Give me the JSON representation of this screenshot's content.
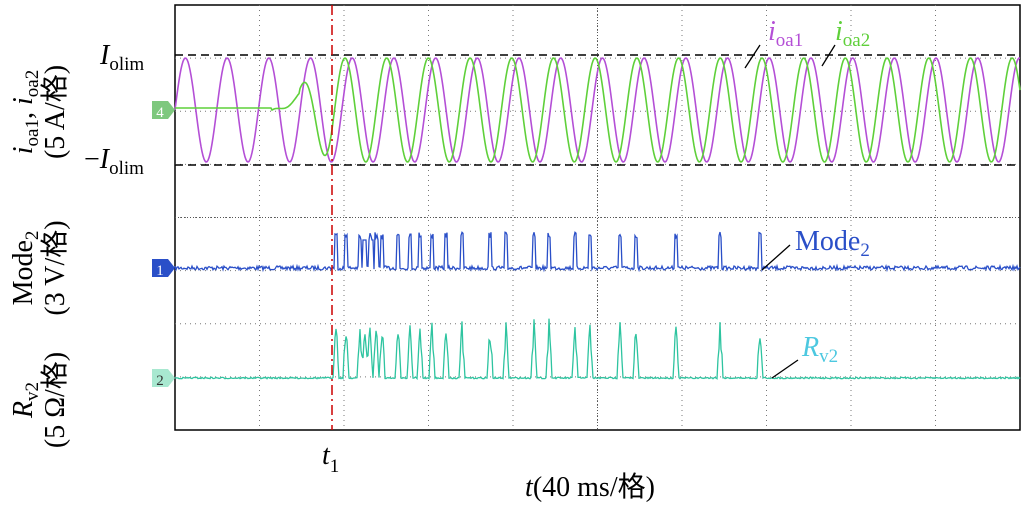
{
  "current_axis": {
    "sym1": "i",
    "sub1": "oa1",
    "sep": ", ",
    "sym2": "i",
    "sub2": "oa2",
    "scale": "(5 A/格)"
  },
  "mode_axis": {
    "sym": "Mode",
    "sub": "2",
    "scale": "(3 V/格)"
  },
  "rv_axis": {
    "sym": "R",
    "sub": "v2",
    "scale": "(5 Ω/格)"
  },
  "levels": {
    "upper": {
      "sym": "I",
      "sub": "olim"
    },
    "lower": {
      "sign": "−",
      "sym": "I",
      "sub": "olim"
    }
  },
  "channels": [
    "4",
    "1",
    "2"
  ],
  "trace_labels": {
    "ioa1": {
      "sym": "i",
      "sub": "oa1"
    },
    "ioa2": {
      "sym": "i",
      "sub": "oa2"
    },
    "mode2": {
      "sym": "Mode",
      "sub": "2"
    },
    "rv2": {
      "sym": "R",
      "sub": "v2"
    }
  },
  "time_marker": {
    "sym": "t",
    "sub": "1"
  },
  "x_axis": {
    "sym": "t",
    "unit": "(40 ms/格)"
  }
}
